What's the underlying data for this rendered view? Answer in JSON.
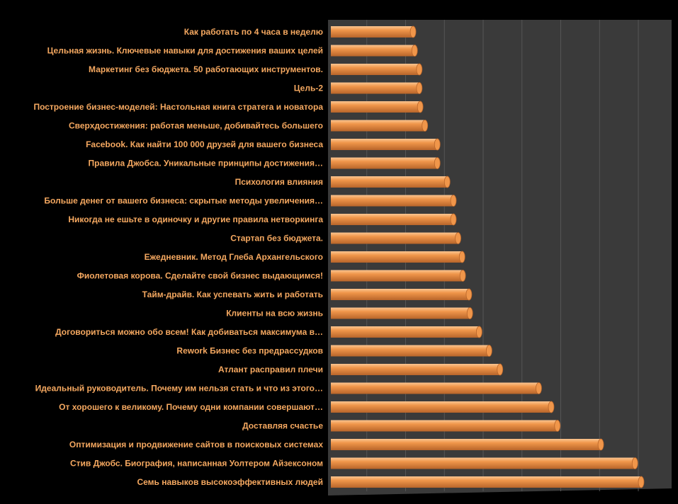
{
  "colors": {
    "background": "#000000",
    "plot_area": "#3A3A3A",
    "gridline": "#555555",
    "bar": "#F0964A",
    "bar_highlight": "#FBC590",
    "bar_shadow": "#B8652A",
    "label": "#F5A860"
  },
  "chart_data": {
    "type": "bar",
    "orientation": "horizontal",
    "style": "3d-cylinder",
    "title": "",
    "xlabel": "",
    "ylabel": "",
    "grid": true,
    "legend": "none",
    "xlim": [
      0,
      100
    ],
    "categories": [
      "Как работать по 4 часа в неделю",
      "Цельная жизнь. Ключевые навыки для достижения ваших целей",
      "Маркетинг без бюджета. 50 работающих инструментов.",
      "Цель-2",
      "Построение бизнес-моделей: Настольная книга стратега и новатора",
      "Сверхдостижения: работая меньше, добивайтесь большего",
      "Facebook. Как найти 100 000 друзей для вашего бизнеса",
      "Правила Джобса. Уникальные принципы достижения…",
      "Психология влияния",
      "Больше денег от вашего бизнеса: скрытые методы увеличения…",
      "Никогда не ешьте в одиночку и другие правила нетворкинга",
      "Стартап без бюджета.",
      "Ежедневник. Метод Глеба Архангельского",
      "Фиолетовая корова. Сделайте свой бизнес выдающимся!",
      "Тайм-драйв. Как успевать жить и работать",
      "Клиенты на всю жизнь",
      "Договориться можно обо всем! Как добиваться максимума в…",
      "Rework Бизнес без предрассудков",
      "Атлант расправил плечи",
      "Идеальный руководитель. Почему им нельзя стать и что из этого…",
      "От хорошего к великому. Почему одни компании совершают…",
      "Доставляя счастье",
      "Оптимизация и продвижение сайтов в поисковых системах",
      "Стив Джобс. Биография, написанная Уолтером Айзексоном",
      "Семь навыков высокоэффективных людей"
    ],
    "values": [
      26.5,
      27,
      28.5,
      28.5,
      28.8,
      30.3,
      34.3,
      34.3,
      37.5,
      39.5,
      39.5,
      41,
      42.3,
      42.5,
      44.5,
      44.8,
      47.8,
      51,
      54.5,
      67,
      71,
      73,
      87,
      98,
      100
    ]
  }
}
